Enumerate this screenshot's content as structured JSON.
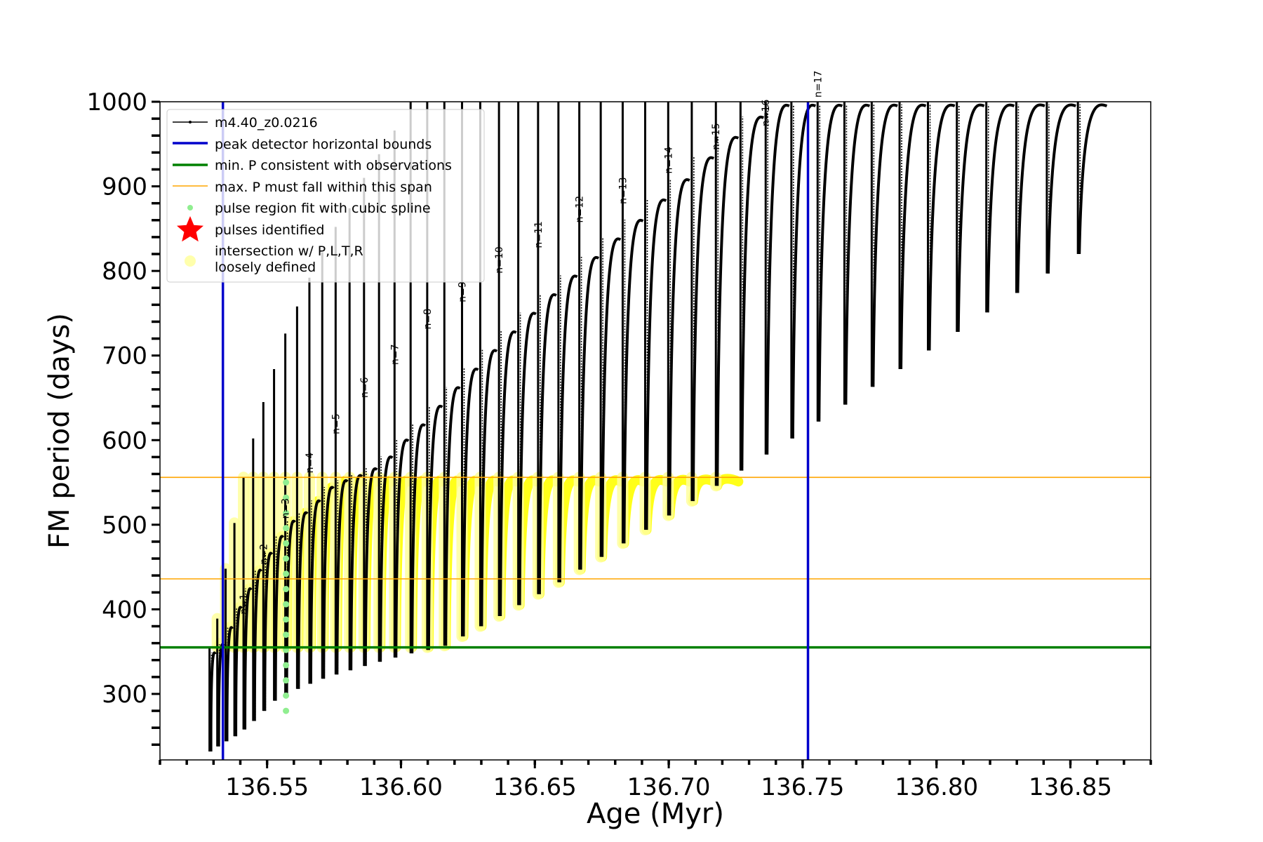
{
  "chart_data": {
    "type": "line",
    "xlabel": "Age (Myr)",
    "ylabel": "FM period (days)",
    "xlim": [
      136.51,
      136.88
    ],
    "ylim": [
      222,
      1000
    ],
    "x_ticks": [
      {
        "value": 136.55,
        "label": "136.55"
      },
      {
        "value": 136.6,
        "label": "136.60"
      },
      {
        "value": 136.65,
        "label": "136.65"
      },
      {
        "value": 136.7,
        "label": "136.70"
      },
      {
        "value": 136.75,
        "label": "136.75"
      },
      {
        "value": 136.8,
        "label": "136.80"
      },
      {
        "value": 136.85,
        "label": "136.85"
      }
    ],
    "y_ticks": [
      {
        "value": 300,
        "label": "300"
      },
      {
        "value": 400,
        "label": "400"
      },
      {
        "value": 500,
        "label": "500"
      },
      {
        "value": 600,
        "label": "600"
      },
      {
        "value": 700,
        "label": "700"
      },
      {
        "value": 800,
        "label": "800"
      },
      {
        "value": 900,
        "label": "900"
      },
      {
        "value": 1000,
        "label": "1000"
      }
    ],
    "grid": false,
    "legend_position": "upper-left",
    "legend": [
      {
        "key": "track",
        "label": "m4.40_z0.0216",
        "color": "#000000"
      },
      {
        "key": "bounds",
        "label": "peak detector horizontal bounds",
        "color": "#0000cc"
      },
      {
        "key": "minp",
        "label": "min. P consistent with observations",
        "color": "#008000"
      },
      {
        "key": "maxp",
        "label": "max. P must fall within this span",
        "color": "#ffa500"
      },
      {
        "key": "spline",
        "label": "pulse region fit with cubic spline",
        "color": "#90ee90"
      },
      {
        "key": "pulses",
        "label": "pulses identified",
        "color": "#ff0000"
      },
      {
        "key": "loose",
        "label": "intersection w/ P,L,T,R",
        "label2": "loosely defined",
        "color": "#ffff9e"
      }
    ],
    "vertical_bounds": [
      136.5335,
      136.752
    ],
    "min_period": 355,
    "max_period_span": [
      436,
      556
    ],
    "series": [
      {
        "x": [
          136.5285,
          136.5314,
          136.5345,
          136.5378,
          136.5412,
          136.5448,
          136.5486,
          136.5526,
          136.5568,
          136.5612,
          136.5658,
          136.5706,
          136.5756,
          136.5808,
          136.5862,
          136.5918,
          136.5976,
          136.6036,
          136.6098,
          136.6162,
          136.6228,
          136.6296,
          136.6366,
          136.6438,
          136.6512,
          136.6588,
          136.6666,
          136.6746,
          136.6828,
          136.6912,
          136.6998,
          136.7086,
          136.7176,
          136.7268,
          136.7362,
          136.7458,
          136.7556,
          136.7656,
          136.7758,
          136.7862,
          136.7968,
          136.8076,
          136.8186,
          136.8298,
          136.8412,
          136.8528
        ],
        "troughs": [
          232,
          238,
          244,
          250,
          258,
          268,
          280,
          292,
          300,
          306,
          312,
          318,
          323,
          328,
          333,
          338,
          343,
          348,
          352,
          357,
          368,
          380,
          392,
          405,
          418,
          432,
          447,
          462,
          478,
          494,
          511,
          528,
          546,
          564,
          583,
          602,
          622,
          642,
          663,
          684,
          706,
          728,
          751,
          774,
          797,
          820
        ],
        "peaks": [
          352,
          362,
          382,
          406,
          428,
          450,
          470,
          490,
          508,
          518,
          532,
          548,
          556,
          562,
          570,
          584,
          604,
          622,
          644,
          666,
          688,
          710,
          732,
          754,
          776,
          798,
          820,
          842,
          864,
          888,
          912,
          938,
          962,
          986,
          1000,
          1000,
          1000,
          1000,
          1000,
          1000,
          1000,
          1000,
          1000,
          1000,
          1000,
          1000
        ],
        "spikes": [
          355,
          389,
          448,
          502,
          556,
          602,
          645,
          684,
          726,
          758,
          792,
          822,
          852,
          874,
          910,
          938,
          966,
          1000,
          1000,
          1000,
          1000,
          1000,
          1000,
          1000,
          1000,
          1000,
          1000,
          1000,
          1000,
          1000,
          1000,
          1000,
          1000,
          1000,
          1000,
          1000,
          1000,
          1000,
          1000,
          1000,
          1000,
          1000,
          1000,
          1000,
          1000,
          1000
        ]
      }
    ],
    "pulse_labels": [
      {
        "text": "n=1",
        "x": 136.5412,
        "y": 389
      },
      {
        "text": "n=2",
        "x": 136.5486,
        "y": 448
      },
      {
        "text": "n=3",
        "x": 136.5568,
        "y": 502
      },
      {
        "text": "n=4",
        "x": 136.5658,
        "y": 556
      },
      {
        "text": "n=5",
        "x": 136.5756,
        "y": 602
      },
      {
        "text": "n=6",
        "x": 136.5862,
        "y": 645
      },
      {
        "text": "n=7",
        "x": 136.5976,
        "y": 684
      },
      {
        "text": "n=8",
        "x": 136.6098,
        "y": 726
      },
      {
        "text": "n=9",
        "x": 136.6228,
        "y": 758
      },
      {
        "text": "n=10",
        "x": 136.6366,
        "y": 792
      },
      {
        "text": "n=11",
        "x": 136.6512,
        "y": 822
      },
      {
        "text": "n=12",
        "x": 136.6666,
        "y": 852
      },
      {
        "text": "n=13",
        "x": 136.6828,
        "y": 874
      },
      {
        "text": "n=14",
        "x": 136.6998,
        "y": 910
      },
      {
        "text": "n=15",
        "x": 136.7176,
        "y": 938
      },
      {
        "text": "n=16",
        "x": 136.7362,
        "y": 966
      },
      {
        "text": "n=17",
        "x": 136.7556,
        "y": 1000
      }
    ]
  }
}
